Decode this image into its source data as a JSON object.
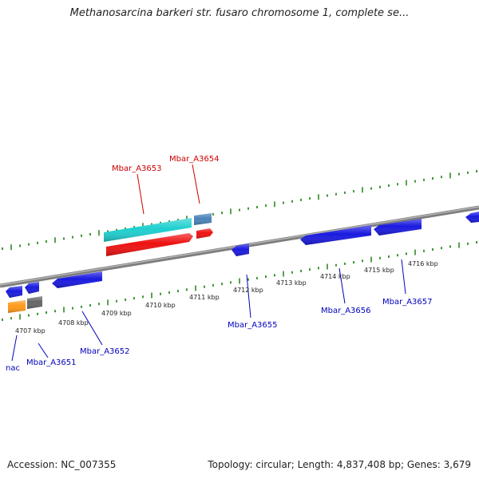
{
  "title": "Methanosarcina barkeri str. fusaro chromosome 1, complete se...",
  "footer": {
    "accession": "Accession: NC_007355",
    "topology": "Topology: circular; Length: 4,837,408 bp; Genes: 3,679"
  },
  "colors": {
    "backbone": "#8a8a8a",
    "tick": "#2e8b22",
    "forward_label": "#cc0000",
    "reverse_label": "#0000bb",
    "blue_gene": "#1a1ae0",
    "cyan_gene": "#1fcfcf",
    "red_gene": "#ee1111",
    "steel_gene": "#4a82b8",
    "orange_gene": "#ff9a1a",
    "gray_gene": "#666666"
  },
  "ruler_labels": [
    "4707 kbp",
    "4708 kbp",
    "4709 kbp",
    "4710 kbp",
    "4711 kbp",
    "4712 kbp",
    "4713 kbp",
    "4714 kbp",
    "4715 kbp",
    "4716 kbp"
  ],
  "gene_labels": {
    "forward": [
      "Mbar_A3653",
      "Mbar_A3654"
    ],
    "reverse": [
      "nac",
      "Mbar_A3651",
      "Mbar_A3652",
      "Mbar_A3655",
      "Mbar_A3656",
      "Mbar_A3657"
    ]
  }
}
